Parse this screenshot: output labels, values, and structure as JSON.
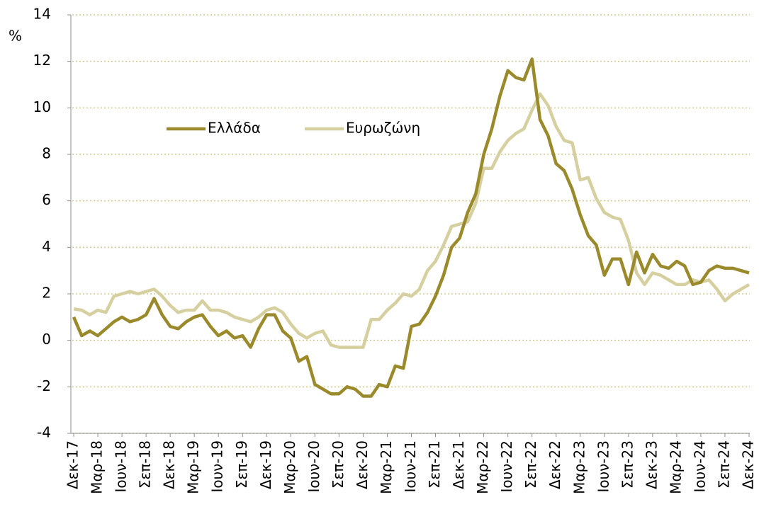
{
  "chart_data": {
    "type": "line",
    "y_label": "%",
    "categories": [
      "Δεκ-17",
      null,
      null,
      "Μαρ-18",
      null,
      null,
      "Ιουν-18",
      null,
      null,
      "Σεπ-18",
      null,
      null,
      "Δεκ-18",
      null,
      null,
      "Μαρ-19",
      null,
      null,
      "Ιουν-19",
      null,
      null,
      "Σεπ-19",
      null,
      null,
      "Δεκ-19",
      null,
      null,
      "Μαρ-20",
      null,
      null,
      "Ιουν-20",
      null,
      null,
      "Σεπ-20",
      null,
      null,
      "Δεκ-20",
      null,
      null,
      "Μαρ-21",
      null,
      null,
      "Ιουν-21",
      null,
      null,
      "Σεπ-21",
      null,
      null,
      "Δεκ-21",
      null,
      null,
      "Μαρ-22",
      null,
      null,
      "Ιουν-22",
      null,
      null,
      "Σεπ-22",
      null,
      null,
      "Δεκ-22",
      null,
      null,
      "Μαρ-23",
      null,
      null,
      "Ιουν-23",
      null,
      null,
      "Σεπ-23",
      null,
      null,
      "Δεκ-23",
      null,
      null,
      "Μαρ-24",
      null,
      null,
      "Ιουν-24",
      null,
      null,
      "Σεπ-24",
      null,
      null,
      "Δεκ-24"
    ],
    "series": [
      {
        "name": "Ελλάδα",
        "color": "#9a8a2c",
        "values": [
          1.0,
          0.2,
          0.4,
          0.2,
          0.5,
          0.8,
          1.0,
          0.8,
          0.9,
          1.1,
          1.8,
          1.1,
          0.6,
          0.5,
          0.8,
          1.0,
          1.1,
          0.6,
          0.2,
          0.4,
          0.1,
          0.2,
          -0.3,
          0.5,
          1.1,
          1.1,
          0.4,
          0.1,
          -0.9,
          -0.7,
          -1.9,
          -2.1,
          -2.3,
          -2.3,
          -2.0,
          -2.1,
          -2.4,
          -2.4,
          -1.9,
          -2.0,
          -1.1,
          -1.2,
          0.6,
          0.7,
          1.2,
          1.9,
          2.8,
          4.0,
          4.4,
          5.5,
          6.3,
          8.0,
          9.1,
          10.5,
          11.6,
          11.3,
          11.2,
          12.1,
          9.5,
          8.8,
          7.6,
          7.3,
          6.5,
          5.4,
          4.5,
          4.1,
          2.8,
          3.5,
          3.5,
          2.4,
          3.8,
          2.9,
          3.7,
          3.2,
          3.1,
          3.4,
          3.2,
          2.4,
          2.5,
          3.0,
          3.2,
          3.1,
          3.1,
          3.0,
          2.9
        ]
      },
      {
        "name": "Ευρωζώνη",
        "color": "#d6d0a0",
        "values": [
          1.35,
          1.3,
          1.1,
          1.3,
          1.2,
          1.9,
          2.0,
          2.1,
          2.0,
          2.1,
          2.2,
          1.9,
          1.5,
          1.2,
          1.3,
          1.3,
          1.7,
          1.3,
          1.3,
          1.2,
          1.0,
          0.9,
          0.8,
          1.0,
          1.3,
          1.4,
          1.2,
          0.7,
          0.3,
          0.1,
          0.3,
          0.4,
          -0.2,
          -0.3,
          -0.3,
          -0.3,
          -0.3,
          0.9,
          0.9,
          1.3,
          1.6,
          2.0,
          1.9,
          2.2,
          3.0,
          3.4,
          4.1,
          4.9,
          5.0,
          5.1,
          5.9,
          7.4,
          7.4,
          8.1,
          8.6,
          8.9,
          9.1,
          9.9,
          10.6,
          10.1,
          9.2,
          8.6,
          8.5,
          6.9,
          7.0,
          6.1,
          5.5,
          5.3,
          5.2,
          4.3,
          2.9,
          2.4,
          2.9,
          2.8,
          2.6,
          2.4,
          2.4,
          2.6,
          2.5,
          2.6,
          2.2,
          1.7,
          2.0,
          2.2,
          2.4
        ]
      }
    ],
    "ylim": [
      -4,
      14
    ],
    "yticks": [
      -4,
      -2,
      0,
      2,
      4,
      6,
      8,
      10,
      12,
      14
    ],
    "grid": true
  }
}
